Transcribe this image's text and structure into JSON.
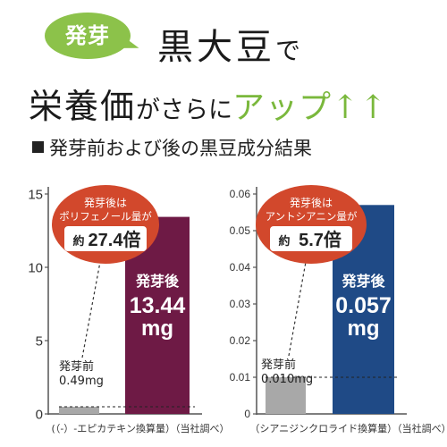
{
  "header": {
    "bubble_text": "発芽",
    "title_main": "黒大豆",
    "title_particle": "で",
    "line2_main": "栄養価",
    "line2_mid": "がさらに",
    "line2_accent": "アップ↑↑",
    "subtitle": "発芽前および後の黒豆成分結果"
  },
  "colors": {
    "green": "#8cc24a",
    "accent_green": "#7ab83c",
    "wine": "#6e1a45",
    "navy": "#1f4a86",
    "gray_bar": "#a8a8a8",
    "red_callout": "#d2482c"
  },
  "chart_data": [
    {
      "type": "bar",
      "categories": [
        "発芽前",
        "発芽後"
      ],
      "values": [
        0.49,
        13.44
      ],
      "ylim": [
        0,
        15
      ],
      "yticks": [
        "0",
        "5",
        "10",
        "15"
      ],
      "ytick_values": [
        0,
        5,
        10,
        15
      ],
      "grid": false,
      "bar_labels": [
        {
          "name": "発芽前",
          "value": "0.49mg"
        },
        {
          "name": "発芽後",
          "value_num": "13.44",
          "value_unit": "mg"
        }
      ],
      "callout": {
        "line1": "発芽後は",
        "line2": "ポリフェノール量が",
        "prefix": "約",
        "value": "27.4倍"
      },
      "footnote": "(（-）-エピカテキン換算量）（当社調べ）"
    },
    {
      "type": "bar",
      "categories": [
        "発芽前",
        "発芽後"
      ],
      "values": [
        0.01,
        0.057
      ],
      "ylim": [
        0,
        0.06
      ],
      "yticks": [
        "0",
        "0.01",
        "0.02",
        "0.03",
        "0.04",
        "0.05",
        "0.06"
      ],
      "ytick_values": [
        0,
        0.01,
        0.02,
        0.03,
        0.04,
        0.05,
        0.06
      ],
      "grid": false,
      "bar_labels": [
        {
          "name": "発芽前",
          "value": "0.010mg"
        },
        {
          "name": "発芽後",
          "value_num": "0.057",
          "value_unit": "mg"
        }
      ],
      "callout": {
        "line1": "発芽後は",
        "line2": "アントシアニン量が",
        "prefix": "約",
        "value": "5.7倍"
      },
      "footnote": "（シアニジンクロライド換算量）（当社調べ）"
    }
  ]
}
